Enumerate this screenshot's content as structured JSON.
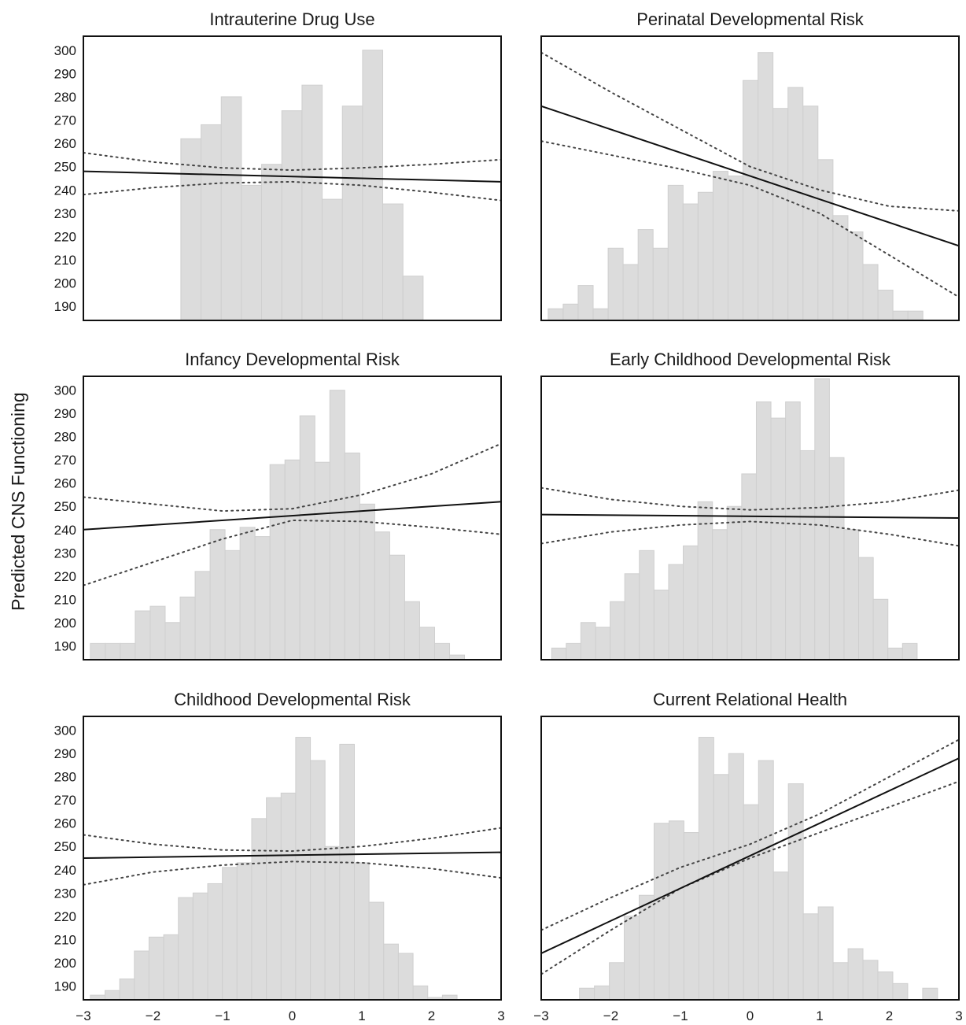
{
  "figure": {
    "ylabel": "Predicted CNS Functioning"
  },
  "chart_data": [
    {
      "type": "bar",
      "title": "Intrauterine Drug Use",
      "xlim": [
        -3,
        3
      ],
      "ylim": [
        184,
        306
      ],
      "yticks": [
        190,
        200,
        210,
        220,
        230,
        240,
        250,
        260,
        270,
        280,
        290,
        300
      ],
      "xticks": [],
      "histogram": {
        "bin_start": -1.6,
        "bin_width": 0.29,
        "heights": [
          262,
          268,
          280,
          242,
          251,
          274,
          285,
          236,
          276,
          300,
          234,
          203
        ]
      },
      "fit_line": [
        [
          -3,
          248
        ],
        [
          3,
          243.5
        ]
      ],
      "ci_upper": [
        [
          -3,
          256
        ],
        [
          -2,
          252
        ],
        [
          -1,
          249.5
        ],
        [
          0,
          248.5
        ],
        [
          1,
          249.5
        ],
        [
          2,
          251
        ],
        [
          3,
          253
        ]
      ],
      "ci_lower": [
        [
          -3,
          238
        ],
        [
          -2,
          241
        ],
        [
          -1,
          243
        ],
        [
          0,
          243.5
        ],
        [
          1,
          242
        ],
        [
          2,
          239
        ],
        [
          3,
          235.5
        ]
      ]
    },
    {
      "type": "bar",
      "title": "Perinatal Developmental Risk",
      "xlim": [
        -3,
        3
      ],
      "ylim": [
        184,
        306
      ],
      "yticks": [],
      "xticks": [],
      "histogram": {
        "bin_start": -2.9,
        "bin_width": 0.2153,
        "heights": [
          189,
          191,
          199,
          189,
          215,
          208,
          223,
          215,
          242,
          234,
          239,
          248,
          246,
          287,
          299,
          275,
          284,
          276,
          253,
          229,
          222,
          208,
          197,
          188,
          188
        ]
      },
      "fit_line": [
        [
          -3,
          276
        ],
        [
          3,
          216
        ]
      ],
      "ci_upper": [
        [
          -3,
          299
        ],
        [
          -2,
          282
        ],
        [
          -1,
          266
        ],
        [
          0,
          250
        ],
        [
          1,
          240
        ],
        [
          2,
          233
        ],
        [
          3,
          231
        ]
      ],
      "ci_lower": [
        [
          -3,
          261
        ],
        [
          -2,
          255
        ],
        [
          -1,
          249
        ],
        [
          0,
          242
        ],
        [
          1,
          230
        ],
        [
          2,
          212
        ],
        [
          3,
          194
        ]
      ]
    },
    {
      "type": "bar",
      "title": "Infancy Developmental Risk",
      "xlim": [
        -3,
        3
      ],
      "ylim": [
        184,
        306
      ],
      "yticks": [
        190,
        200,
        210,
        220,
        230,
        240,
        250,
        260,
        270,
        280,
        290,
        300
      ],
      "xticks": [],
      "histogram": {
        "bin_start": -2.9,
        "bin_width": 0.215,
        "heights": [
          191,
          191,
          191,
          205,
          207,
          200,
          211,
          222,
          240,
          231,
          241,
          237,
          268,
          270,
          289,
          269,
          300,
          273,
          251,
          239,
          229,
          209,
          198,
          191,
          186
        ]
      },
      "fit_line": [
        [
          -3,
          240
        ],
        [
          3,
          252
        ]
      ],
      "ci_upper": [
        [
          -3,
          254
        ],
        [
          -2,
          251
        ],
        [
          -1,
          248
        ],
        [
          0,
          249
        ],
        [
          1,
          255
        ],
        [
          2,
          264
        ],
        [
          3,
          277
        ]
      ],
      "ci_lower": [
        [
          -3,
          216
        ],
        [
          -2,
          226
        ],
        [
          -1,
          236
        ],
        [
          0,
          244
        ],
        [
          1,
          243.5
        ],
        [
          2,
          241
        ],
        [
          3,
          238
        ]
      ]
    },
    {
      "type": "bar",
      "title": "Early Childhood Developmental Risk",
      "xlim": [
        -3,
        3
      ],
      "ylim": [
        184,
        306
      ],
      "yticks": [],
      "xticks": [],
      "histogram": {
        "bin_start": -2.85,
        "bin_width": 0.21,
        "heights": [
          189,
          191,
          200,
          198,
          209,
          221,
          231,
          214,
          225,
          233,
          252,
          240,
          250,
          264,
          295,
          288,
          295,
          274,
          305,
          271,
          240,
          228,
          210,
          189,
          191
        ]
      },
      "fit_line": [
        [
          -3,
          246.5
        ],
        [
          3,
          245
        ]
      ],
      "ci_upper": [
        [
          -3,
          258
        ],
        [
          -2,
          253
        ],
        [
          -1,
          250
        ],
        [
          0,
          248.5
        ],
        [
          1,
          249.5
        ],
        [
          2,
          252
        ],
        [
          3,
          257
        ]
      ],
      "ci_lower": [
        [
          -3,
          234
        ],
        [
          -2,
          239
        ],
        [
          -1,
          242
        ],
        [
          0,
          243.5
        ],
        [
          1,
          242
        ],
        [
          2,
          238
        ],
        [
          3,
          233
        ]
      ]
    },
    {
      "type": "bar",
      "title": "Childhood Developmental Risk",
      "xlim": [
        -3,
        3
      ],
      "ylim": [
        184,
        306
      ],
      "yticks": [
        190,
        200,
        210,
        220,
        230,
        240,
        250,
        260,
        270,
        280,
        290,
        300
      ],
      "xticks": [
        -3,
        -2,
        -1,
        0,
        1,
        2,
        3
      ],
      "histogram": {
        "bin_start": -2.9,
        "bin_width": 0.2107,
        "heights": [
          186,
          188,
          193,
          205,
          211,
          212,
          228,
          230,
          234,
          241,
          243,
          262,
          271,
          273,
          297,
          287,
          250,
          294,
          243,
          226,
          208,
          204,
          190,
          185,
          186
        ]
      },
      "fit_line": [
        [
          -3,
          245
        ],
        [
          3,
          247.5
        ]
      ],
      "ci_upper": [
        [
          -3,
          255
        ],
        [
          -2,
          251
        ],
        [
          -1,
          248.5
        ],
        [
          0,
          248
        ],
        [
          1,
          250
        ],
        [
          2,
          253.5
        ],
        [
          3,
          258
        ]
      ],
      "ci_lower": [
        [
          -3,
          233.5
        ],
        [
          -2,
          239
        ],
        [
          -1,
          242
        ],
        [
          0,
          243.5
        ],
        [
          1,
          243
        ],
        [
          2,
          240.5
        ],
        [
          3,
          236.5
        ]
      ]
    },
    {
      "type": "bar",
      "title": "Current Relational Health",
      "xlim": [
        -3,
        3
      ],
      "ylim": [
        184,
        306
      ],
      "yticks": [],
      "xticks": [
        -3,
        -2,
        -1,
        0,
        1,
        2,
        3
      ],
      "histogram": {
        "bin_start": -2.45,
        "bin_width": 0.2143,
        "heights": [
          189,
          190,
          200,
          220,
          229,
          260,
          261,
          256,
          297,
          281,
          290,
          268,
          287,
          239,
          277,
          221,
          224,
          200,
          206,
          201,
          196,
          191,
          184,
          189
        ]
      },
      "fit_line": [
        [
          -3,
          204
        ],
        [
          3,
          288
        ]
      ],
      "ci_upper": [
        [
          -3,
          214
        ],
        [
          -2,
          228
        ],
        [
          -1,
          241
        ],
        [
          0,
          251
        ],
        [
          1,
          264
        ],
        [
          2,
          280
        ],
        [
          3,
          296
        ]
      ],
      "ci_lower": [
        [
          -3,
          195
        ],
        [
          -2,
          214
        ],
        [
          -1,
          232
        ],
        [
          0,
          245
        ],
        [
          1,
          256
        ],
        [
          2,
          267
        ],
        [
          3,
          278
        ]
      ]
    }
  ]
}
